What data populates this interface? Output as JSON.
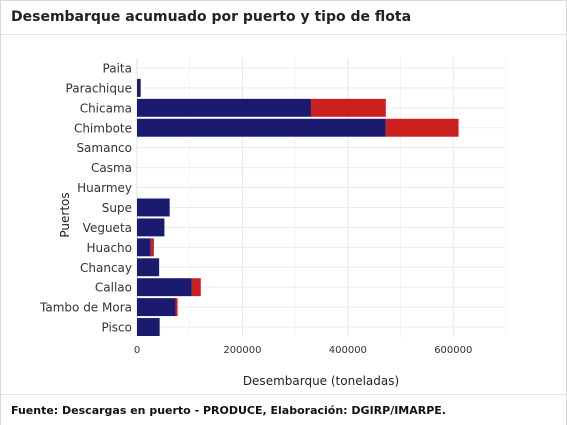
{
  "title": "Desembarque acumuado por puerto y tipo de flota",
  "source": "Fuente: Descargas en puerto - PRODUCE, Elaboración: DGIRP/IMARPE.",
  "chart_data": {
    "type": "bar",
    "orientation": "horizontal",
    "stacked": true,
    "title": "Desembarque acumuado por puerto y tipo de flota",
    "xlabel": "Desembarque (toneladas)",
    "ylabel": "Puertos",
    "xlim": [
      0,
      700000
    ],
    "xticks": [
      0,
      200000,
      400000,
      600000
    ],
    "xtick_labels": [
      "0",
      "200000",
      "400000",
      "600000"
    ],
    "grid": true,
    "legend": "none",
    "categories": [
      "Paita",
      "Parachique",
      "Chicama",
      "Chimbote",
      "Samanco",
      "Casma",
      "Huarmey",
      "Supe",
      "Vegueta",
      "Huacho",
      "Chancay",
      "Callao",
      "Tambo de Mora",
      "Pisco"
    ],
    "series": [
      {
        "color": "#1a1a6e",
        "values": [
          0,
          7000,
          330000,
          472000,
          0,
          0,
          0,
          62000,
          52000,
          26000,
          42000,
          104000,
          73000,
          43000
        ]
      },
      {
        "color": "#cc1f1f",
        "values": [
          0,
          0,
          142000,
          138000,
          0,
          0,
          0,
          0,
          0,
          6000,
          0,
          17000,
          4000,
          0
        ]
      }
    ]
  }
}
